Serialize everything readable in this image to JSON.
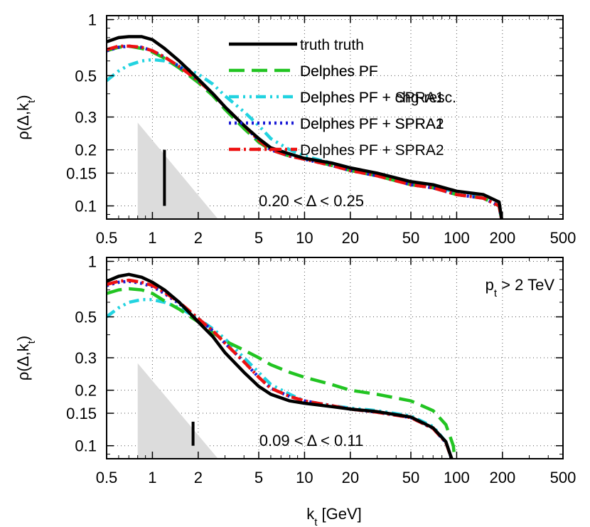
{
  "chart_data": [
    {
      "type": "line",
      "panel": "top",
      "xscale": "log",
      "yscale": "log",
      "xlim": [
        0.5,
        500
      ],
      "ylim": [
        0.085,
        1.05
      ],
      "xlabel": "",
      "ylabel": "ρ(Δ,k_t)",
      "xticks": [
        0.5,
        1,
        2,
        5,
        10,
        20,
        50,
        100,
        200,
        500
      ],
      "xtick_labels": [
        "0.5",
        "1",
        "2",
        "5",
        "10",
        "20",
        "50",
        "100",
        "200",
        "500"
      ],
      "yticks": [
        0.1,
        0.15,
        0.2,
        0.3,
        0.5,
        1
      ],
      "ytick_labels": [
        "0.1",
        "0.15",
        "0.2",
        "0.3",
        "0.5",
        "1"
      ],
      "annotation": "0.20 < Δ < 0.25",
      "marker": {
        "triangle_kt_range": [
          0.8,
          2.7
        ],
        "triangle_top": 0.28,
        "bar_kt": 1.2,
        "bar_range": [
          0.1,
          0.2
        ]
      },
      "legend": [
        {
          "label": "truth truth",
          "series": "truth"
        },
        {
          "label": "Delphes PF",
          "ghost": "Delphes PF",
          "series": "delphes_pf"
        },
        {
          "label": "Delphes PF + chg-resc.",
          "ghost": "Delphes PF + SPRA1",
          "series": "chg_resc"
        },
        {
          "label": "Delphes PF + SPRA1",
          "ghost": "Delphes PF + SPRA2",
          "series": "spra1"
        },
        {
          "label": "Delphes PF + SPRA2",
          "series": "spra2"
        }
      ],
      "series": [
        {
          "name": "truth",
          "color": "#000000",
          "dash": "",
          "width": 4.5,
          "x": [
            0.5,
            0.6,
            0.7,
            0.85,
            1.0,
            1.2,
            1.5,
            2,
            2.5,
            3,
            4,
            5,
            6,
            8,
            10,
            15,
            20,
            30,
            50,
            70,
            100,
            150,
            190,
            200
          ],
          "y": [
            0.76,
            0.8,
            0.81,
            0.81,
            0.78,
            0.7,
            0.6,
            0.48,
            0.4,
            0.34,
            0.27,
            0.23,
            0.205,
            0.19,
            0.18,
            0.17,
            0.16,
            0.15,
            0.135,
            0.13,
            0.12,
            0.115,
            0.105,
            0.08
          ]
        },
        {
          "name": "delphes_pf",
          "color": "#22c422",
          "dash": "22,10",
          "width": 4.5,
          "x": [
            0.5,
            0.6,
            0.7,
            0.85,
            1.0,
            1.2,
            1.5,
            2,
            2.5,
            3,
            4,
            5,
            6,
            8,
            10,
            15,
            20,
            30,
            50,
            70,
            100,
            150,
            190,
            200
          ],
          "y": [
            0.68,
            0.71,
            0.72,
            0.7,
            0.67,
            0.62,
            0.55,
            0.46,
            0.39,
            0.33,
            0.26,
            0.22,
            0.2,
            0.185,
            0.18,
            0.165,
            0.155,
            0.145,
            0.13,
            0.125,
            0.115,
            0.11,
            0.1,
            0.08
          ]
        },
        {
          "name": "chg_resc",
          "color": "#22d3e0",
          "dash": "14,6,3,6,3,6",
          "width": 4.5,
          "x": [
            0.5,
            0.6,
            0.7,
            0.85,
            1.0,
            1.2,
            1.5,
            2,
            2.5,
            3,
            4,
            5,
            6,
            8,
            10,
            15,
            20,
            30,
            50,
            70,
            100,
            150,
            190,
            200
          ],
          "y": [
            0.47,
            0.53,
            0.57,
            0.6,
            0.61,
            0.6,
            0.57,
            0.51,
            0.45,
            0.39,
            0.32,
            0.27,
            0.23,
            0.2,
            0.185,
            0.17,
            0.16,
            0.148,
            0.132,
            0.128,
            0.118,
            0.112,
            0.1,
            0.08
          ]
        },
        {
          "name": "spra1",
          "color": "#1a1ad6",
          "dash": "3,5",
          "width": 4.5,
          "x": [
            0.5,
            0.6,
            0.7,
            0.85,
            1.0,
            1.2,
            1.5,
            2,
            2.5,
            3,
            4,
            5,
            6,
            8,
            10,
            15,
            20,
            30,
            50,
            70,
            100,
            150,
            190,
            200
          ],
          "y": [
            0.68,
            0.71,
            0.72,
            0.71,
            0.68,
            0.63,
            0.56,
            0.47,
            0.4,
            0.34,
            0.27,
            0.225,
            0.2,
            0.185,
            0.178,
            0.165,
            0.155,
            0.145,
            0.13,
            0.125,
            0.115,
            0.11,
            0.1,
            0.08
          ]
        },
        {
          "name": "spra2",
          "color": "#ee1111",
          "dash": "16,5,3,5",
          "width": 4.5,
          "x": [
            0.5,
            0.6,
            0.7,
            0.85,
            1.0,
            1.2,
            1.5,
            2,
            2.5,
            3,
            4,
            5,
            6,
            8,
            10,
            15,
            20,
            30,
            50,
            70,
            100,
            150,
            190,
            200
          ],
          "y": [
            0.69,
            0.72,
            0.72,
            0.71,
            0.68,
            0.63,
            0.56,
            0.47,
            0.4,
            0.34,
            0.27,
            0.225,
            0.2,
            0.185,
            0.178,
            0.165,
            0.155,
            0.145,
            0.13,
            0.125,
            0.115,
            0.11,
            0.1,
            0.08
          ]
        }
      ]
    },
    {
      "type": "line",
      "panel": "bottom",
      "xscale": "log",
      "yscale": "log",
      "xlim": [
        0.5,
        500
      ],
      "ylim": [
        0.085,
        1.05
      ],
      "xlabel": "k_t [GeV]",
      "ylabel": "ρ(Δ,k_t)",
      "xticks": [
        0.5,
        1,
        2,
        5,
        10,
        20,
        50,
        100,
        200,
        500
      ],
      "xtick_labels": [
        "0.5",
        "1",
        "2",
        "5",
        "10",
        "20",
        "50",
        "100",
        "200",
        "500"
      ],
      "yticks": [
        0.1,
        0.15,
        0.2,
        0.3,
        0.5,
        1
      ],
      "ytick_labels": [
        "0.1",
        "0.15",
        "0.2",
        "0.3",
        "0.5",
        "1"
      ],
      "annotation": "0.09 < Δ < 0.11",
      "corner_label": "p_t > 2 TeV",
      "marker": {
        "triangle_kt_range": [
          0.8,
          2.7
        ],
        "triangle_top": 0.28,
        "bar_kt": 1.85,
        "bar_range": [
          0.1,
          0.135
        ]
      },
      "series": [
        {
          "name": "truth",
          "color": "#000000",
          "dash": "",
          "width": 4.5,
          "x": [
            0.5,
            0.6,
            0.7,
            0.85,
            1.0,
            1.2,
            1.5,
            2,
            2.5,
            3,
            4,
            5,
            6,
            8,
            10,
            15,
            20,
            30,
            50,
            70,
            85,
            95
          ],
          "y": [
            0.78,
            0.83,
            0.85,
            0.82,
            0.77,
            0.7,
            0.6,
            0.47,
            0.39,
            0.32,
            0.25,
            0.21,
            0.19,
            0.175,
            0.17,
            0.163,
            0.158,
            0.153,
            0.143,
            0.125,
            0.105,
            0.08
          ]
        },
        {
          "name": "delphes_pf",
          "color": "#22c422",
          "dash": "22,10",
          "width": 4.5,
          "x": [
            0.5,
            0.6,
            0.7,
            0.85,
            1.0,
            1.2,
            1.5,
            2,
            2.5,
            3,
            4,
            5,
            6,
            8,
            10,
            15,
            20,
            30,
            50,
            70,
            85,
            95,
            98
          ],
          "y": [
            0.67,
            0.7,
            0.71,
            0.7,
            0.67,
            0.61,
            0.55,
            0.47,
            0.41,
            0.37,
            0.33,
            0.3,
            0.275,
            0.25,
            0.235,
            0.215,
            0.2,
            0.19,
            0.175,
            0.155,
            0.13,
            0.1,
            0.08
          ]
        },
        {
          "name": "chg_resc",
          "color": "#22d3e0",
          "dash": "14,6,3,6,3,6",
          "width": 4.5,
          "x": [
            0.5,
            0.6,
            0.7,
            0.85,
            1.0,
            1.2,
            1.5,
            2,
            2.5,
            3,
            4,
            5,
            6,
            8,
            10,
            15,
            20,
            30,
            50,
            70,
            85,
            95
          ],
          "y": [
            0.5,
            0.56,
            0.6,
            0.62,
            0.62,
            0.6,
            0.56,
            0.49,
            0.43,
            0.38,
            0.3,
            0.25,
            0.215,
            0.19,
            0.175,
            0.165,
            0.16,
            0.155,
            0.145,
            0.127,
            0.105,
            0.08
          ]
        },
        {
          "name": "spra1",
          "color": "#1a1ad6",
          "dash": "3,5",
          "width": 4.5,
          "x": [
            0.5,
            0.6,
            0.7,
            0.85,
            1.0,
            1.2,
            1.5,
            2,
            2.5,
            3,
            4,
            5,
            6,
            8,
            10,
            15,
            20,
            30,
            50,
            70,
            85,
            95
          ],
          "y": [
            0.74,
            0.77,
            0.78,
            0.76,
            0.73,
            0.67,
            0.59,
            0.49,
            0.42,
            0.36,
            0.285,
            0.235,
            0.205,
            0.185,
            0.175,
            0.165,
            0.158,
            0.152,
            0.142,
            0.124,
            0.104,
            0.08
          ]
        },
        {
          "name": "spra2",
          "color": "#ee1111",
          "dash": "16,5,3,5",
          "width": 4.5,
          "x": [
            0.5,
            0.6,
            0.7,
            0.85,
            1.0,
            1.2,
            1.5,
            2,
            2.5,
            3,
            4,
            5,
            6,
            8,
            10,
            15,
            20,
            30,
            50,
            70,
            85,
            95
          ],
          "y": [
            0.75,
            0.78,
            0.79,
            0.77,
            0.74,
            0.68,
            0.6,
            0.49,
            0.42,
            0.36,
            0.285,
            0.235,
            0.205,
            0.185,
            0.175,
            0.165,
            0.158,
            0.152,
            0.142,
            0.124,
            0.104,
            0.08
          ]
        }
      ]
    }
  ]
}
